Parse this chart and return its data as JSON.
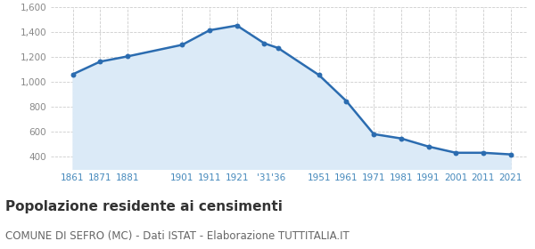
{
  "years": [
    1861,
    1871,
    1881,
    1901,
    1911,
    1921,
    1931,
    1936,
    1951,
    1961,
    1971,
    1981,
    1991,
    2001,
    2011,
    2021
  ],
  "values": [
    1063,
    1165,
    1207,
    1300,
    1417,
    1455,
    1312,
    1275,
    1057,
    848,
    583,
    548,
    483,
    433,
    433,
    420
  ],
  "line_color": "#2b6cb0",
  "fill_color": "#dbeaf7",
  "marker_color": "#2b6cb0",
  "bg_color": "#ffffff",
  "grid_color": "#cccccc",
  "ylim_bottom": 300,
  "ylim_top": 1600,
  "yticks": [
    400,
    600,
    800,
    1000,
    1200,
    1400,
    1600
  ],
  "ytick_labels": [
    "400",
    "600",
    "800",
    "1,000",
    "1,200",
    "1,400",
    "1,600"
  ],
  "xtick_positions": [
    1861,
    1871,
    1881,
    1901,
    1911,
    1921,
    1933.5,
    1951,
    1961,
    1971,
    1981,
    1991,
    2001,
    2011,
    2021
  ],
  "xtick_labels": [
    "1861",
    "1871",
    "1881",
    "1901",
    "1911",
    "1921",
    "'31'36",
    "1951",
    "1961",
    "1971",
    "1981",
    "1991",
    "2001",
    "2011",
    "2021"
  ],
  "xlim_left": 1853,
  "xlim_right": 2027,
  "title": "Popolazione residente ai censimenti",
  "subtitle": "COMUNE DI SEFRO (MC) - Dati ISTAT - Elaborazione TUTTITALIA.IT",
  "title_fontsize": 11,
  "subtitle_fontsize": 8.5,
  "title_color": "#333333",
  "subtitle_color": "#666666"
}
